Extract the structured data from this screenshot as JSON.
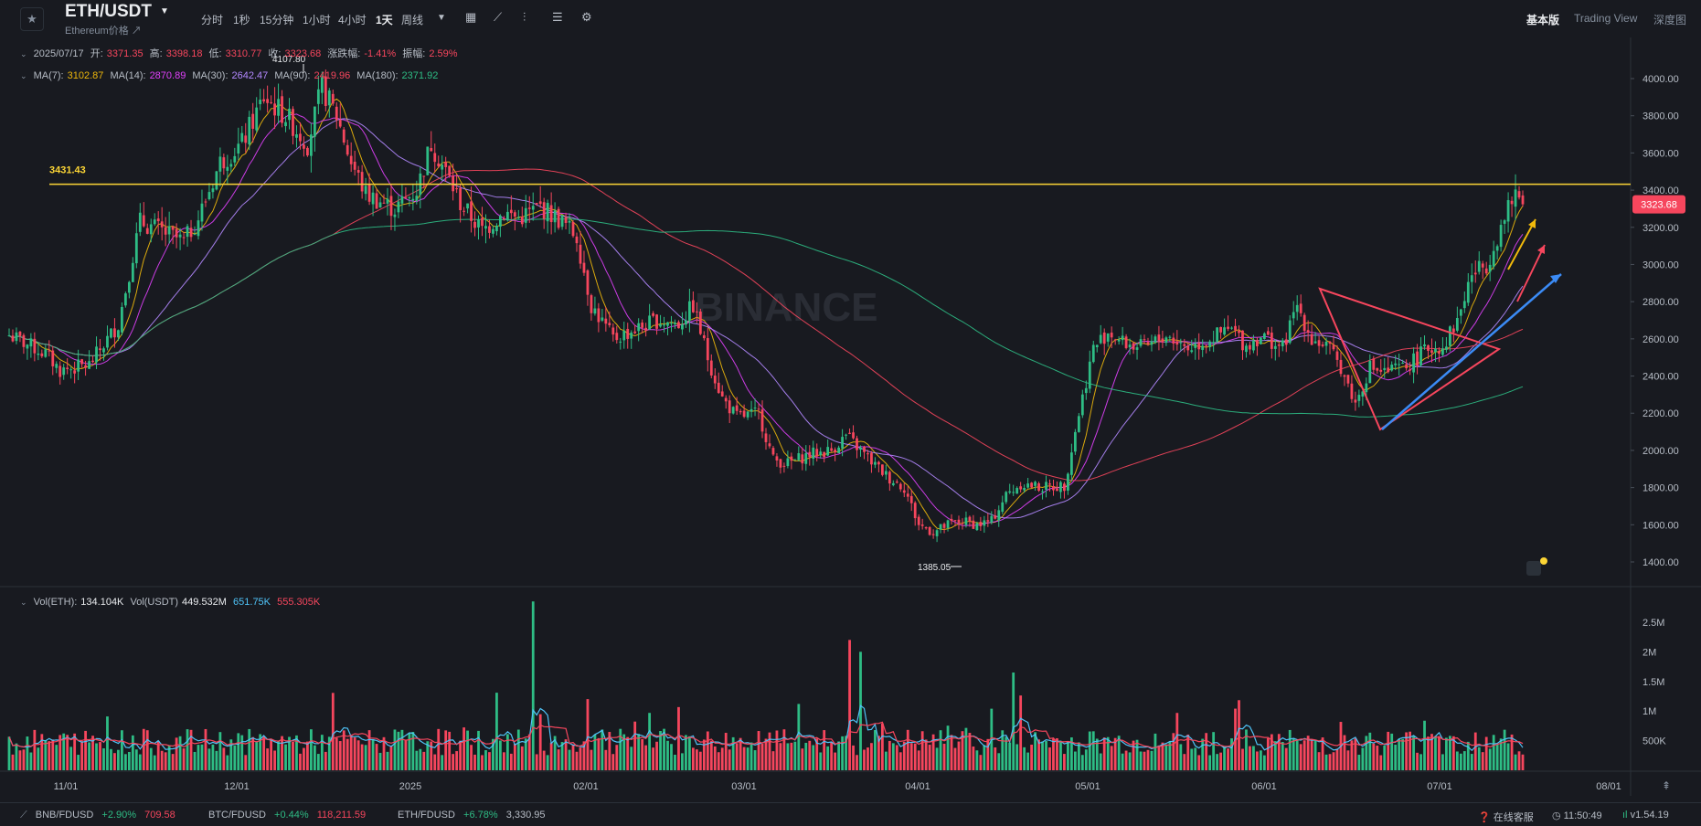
{
  "header": {
    "symbol": "ETH/USDT",
    "subtitle": "Ethereum价格 ↗",
    "intervals": [
      "分时",
      "1秒",
      "15分钟",
      "1小时",
      "4小时",
      "1天",
      "周线"
    ],
    "active_interval": "1天",
    "view_tabs": [
      "基本版",
      "Trading View",
      "深度图"
    ],
    "active_view": "基本版",
    "icons": [
      "star-icon",
      "caret-down-icon",
      "calendar-icon",
      "indicator-icon",
      "candle-type-icon",
      "layout-icon",
      "gear-icon"
    ]
  },
  "ohlc": {
    "date": "2025/07/17",
    "open_label": "开:",
    "open": "3371.35",
    "high_label": "高:",
    "high": "3398.18",
    "low_label": "低:",
    "low": "3310.77",
    "close_label": "收:",
    "close": "3323.68",
    "change_label": "涨跌幅:",
    "change": "-1.41%",
    "amplitude_label": "振幅:",
    "amplitude": "2.59%"
  },
  "ma": {
    "items": [
      {
        "label": "MA(7):",
        "value": "3102.87",
        "color": "#f0b90b"
      },
      {
        "label": "MA(14):",
        "value": "2870.89",
        "color": "#e040fb"
      },
      {
        "label": "MA(30):",
        "value": "2642.47",
        "color": "#b388ff"
      },
      {
        "label": "MA(90):",
        "value": "2419.96",
        "color": "#f6465d"
      },
      {
        "label": "MA(180):",
        "value": "2371.92",
        "color": "#2ebd85"
      }
    ]
  },
  "volume_legend": {
    "eth_label": "Vol(ETH):",
    "eth_value": "134.104K",
    "usdt_label": "Vol(USDT)",
    "usdt_value": "449.532M",
    "ma5_value": "651.75K",
    "ma10_value": "555.305K"
  },
  "chart_data": {
    "type": "candlestick",
    "ylim": [
      1300,
      4150
    ],
    "yticks": [
      "4000.00",
      "3800.00",
      "3600.00",
      "3400.00",
      "3200.00",
      "3000.00",
      "2800.00",
      "2600.00",
      "2400.00",
      "2200.00",
      "2000.00",
      "1800.00",
      "1600.00",
      "1400.00"
    ],
    "ytick_values": [
      4000,
      3800,
      3600,
      3400,
      3200,
      3000,
      2800,
      2600,
      2400,
      2200,
      2000,
      1800,
      1600,
      1400
    ],
    "volume_ticks": [
      "2.5M",
      "2M",
      "1.5M",
      "1M",
      "500K"
    ],
    "volume_tick_values": [
      2500000,
      2000000,
      1500000,
      1000000,
      500000
    ],
    "xticks": [
      "11/01",
      "12/01",
      "2025",
      "02/01",
      "03/01",
      "04/01",
      "05/01",
      "06/01",
      "07/01",
      "08/01"
    ],
    "horizontal_line": {
      "value": 3431.43,
      "label": "3431.43",
      "color": "#fcd535"
    },
    "last_price": {
      "value": 3323.68,
      "label": "3323.68"
    },
    "high_marker": {
      "label": "4107.80",
      "value": 4107.8
    },
    "low_marker": {
      "label": "1385.05",
      "value": 1385.05
    },
    "watermark": "BINANCE",
    "anchors": [
      [
        0,
        2620
      ],
      [
        10,
        2520
      ],
      [
        14,
        2430
      ],
      [
        22,
        2460
      ],
      [
        30,
        2680
      ],
      [
        34,
        3050
      ],
      [
        36,
        3230
      ],
      [
        42,
        3180
      ],
      [
        48,
        3120
      ],
      [
        52,
        3250
      ],
      [
        58,
        3550
      ],
      [
        64,
        3650
      ],
      [
        70,
        3900
      ],
      [
        76,
        3800
      ],
      [
        82,
        3650
      ],
      [
        86,
        3950
      ],
      [
        90,
        3800
      ],
      [
        94,
        3550
      ],
      [
        98,
        3380
      ],
      [
        106,
        3300
      ],
      [
        112,
        3400
      ],
      [
        116,
        3650
      ],
      [
        120,
        3500
      ],
      [
        124,
        3330
      ],
      [
        130,
        3180
      ],
      [
        136,
        3280
      ],
      [
        140,
        3250
      ],
      [
        146,
        3310
      ],
      [
        152,
        3230
      ],
      [
        156,
        3150
      ],
      [
        160,
        2780
      ],
      [
        166,
        2600
      ],
      [
        172,
        2650
      ],
      [
        178,
        2700
      ],
      [
        184,
        2680
      ],
      [
        188,
        2780
      ],
      [
        192,
        2500
      ],
      [
        196,
        2280
      ],
      [
        200,
        2180
      ],
      [
        206,
        2200
      ],
      [
        210,
        1950
      ],
      [
        214,
        1930
      ],
      [
        220,
        1980
      ],
      [
        226,
        2000
      ],
      [
        230,
        2080
      ],
      [
        234,
        2000
      ],
      [
        238,
        1920
      ],
      [
        242,
        1850
      ],
      [
        246,
        1800
      ],
      [
        250,
        1600
      ],
      [
        254,
        1560
      ],
      [
        258,
        1600
      ],
      [
        262,
        1620
      ],
      [
        266,
        1600
      ],
      [
        270,
        1620
      ],
      [
        274,
        1760
      ],
      [
        278,
        1820
      ],
      [
        284,
        1800
      ],
      [
        290,
        1810
      ],
      [
        294,
        2200
      ],
      [
        298,
        2550
      ],
      [
        302,
        2640
      ],
      [
        306,
        2580
      ],
      [
        312,
        2550
      ],
      [
        318,
        2620
      ],
      [
        324,
        2550
      ],
      [
        330,
        2600
      ],
      [
        336,
        2650
      ],
      [
        340,
        2560
      ],
      [
        344,
        2620
      ],
      [
        350,
        2550
      ],
      [
        354,
        2780
      ],
      [
        358,
        2600
      ],
      [
        362,
        2560
      ],
      [
        366,
        2450
      ],
      [
        370,
        2250
      ],
      [
        374,
        2450
      ],
      [
        378,
        2420
      ],
      [
        384,
        2450
      ],
      [
        390,
        2550
      ],
      [
        394,
        2560
      ],
      [
        398,
        2700
      ],
      [
        402,
        2950
      ],
      [
        406,
        3000
      ],
      [
        410,
        3200
      ],
      [
        414,
        3380
      ],
      [
        416,
        3323.68
      ]
    ],
    "days": 417
  }
}
